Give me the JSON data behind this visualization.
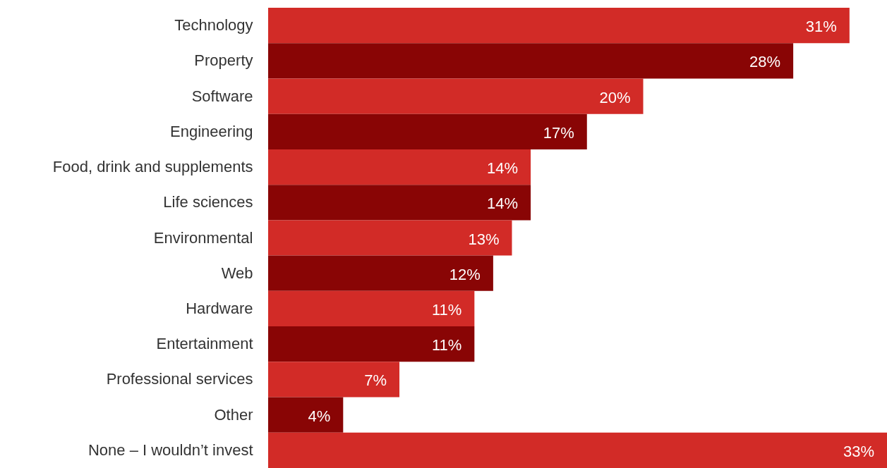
{
  "chart_data": {
    "type": "bar",
    "orientation": "horizontal",
    "categories": [
      "Technology",
      "Property",
      "Software",
      "Engineering",
      "Food, drink and supplements",
      "Life sciences",
      "Environmental",
      "Web",
      "Hardware",
      "Entertainment",
      "Professional services",
      "Other",
      "None – I wouldn’t invest"
    ],
    "values": [
      31,
      28,
      20,
      17,
      14,
      14,
      13,
      12,
      11,
      11,
      7,
      4,
      33
    ],
    "value_labels": [
      "31%",
      "28%",
      "20%",
      "17%",
      "14%",
      "14%",
      "13%",
      "12%",
      "11%",
      "11%",
      "7%",
      "4%",
      "33%"
    ],
    "colors": [
      "#d22b27",
      "#890505",
      "#d22b27",
      "#890505",
      "#d22b27",
      "#890505",
      "#d22b27",
      "#890505",
      "#d22b27",
      "#890505",
      "#d22b27",
      "#890505",
      "#d22b27"
    ],
    "grid": false
  }
}
